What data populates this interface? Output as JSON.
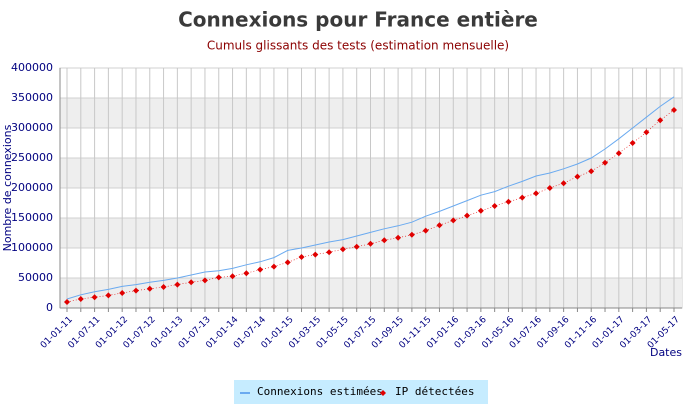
{
  "chart_data": {
    "type": "line",
    "title": "Connexions pour France entière",
    "subtitle": "Cumuls glissants des tests (estimation mensuelle)",
    "y_label": "Nombre de connexions",
    "x_label": "Dates",
    "categories": [
      "01-01-11",
      null,
      "01-07-11",
      null,
      "01-01-12",
      null,
      "01-07-12",
      null,
      "01-01-13",
      null,
      "01-07-13",
      null,
      "01-01-14",
      null,
      "01-07-14",
      null,
      "01-01-15",
      null,
      "01-03-15",
      null,
      "01-05-15",
      null,
      "01-07-15",
      null,
      "01-09-15",
      null,
      "01-11-15",
      null,
      "01-01-16",
      null,
      "01-03-16",
      null,
      "01-05-16",
      null,
      "01-07-16",
      null,
      "01-09-16",
      null,
      "01-11-16",
      null,
      "01-01-17",
      null,
      "01-03-17",
      null,
      "01-05-17"
    ],
    "series": [
      {
        "name": "Connexions estimées",
        "color": "#6aaaf0",
        "values": [
          15000,
          22000,
          27000,
          31000,
          36000,
          39000,
          43000,
          46000,
          50000,
          55000,
          60000,
          62000,
          66000,
          72000,
          77000,
          84000,
          96000,
          100000,
          105000,
          110000,
          114000,
          120000,
          126000,
          132000,
          137000,
          143000,
          153000,
          161000,
          170000,
          179000,
          188000,
          194000,
          203000,
          211000,
          220000,
          225000,
          232000,
          240000,
          250000,
          265000,
          282000,
          300000,
          318000,
          336000,
          352000
        ]
      },
      {
        "name": "IP détectées",
        "color": "#e00000",
        "values": [
          10000,
          15000,
          18000,
          21000,
          25000,
          29000,
          32000,
          35000,
          39000,
          43000,
          46000,
          51000,
          53000,
          58000,
          64000,
          69000,
          76000,
          85000,
          89000,
          93000,
          98000,
          102000,
          107000,
          113000,
          117000,
          122000,
          129000,
          138000,
          146000,
          154000,
          162000,
          170000,
          177000,
          184000,
          191000,
          200000,
          208000,
          219000,
          228000,
          242000,
          258000,
          275000,
          293000,
          313000,
          330000
        ]
      }
    ],
    "ylim": [
      0,
      400000
    ],
    "yticks": [
      0,
      50000,
      100000,
      150000,
      200000,
      250000,
      300000,
      350000,
      400000
    ],
    "grid": true
  }
}
